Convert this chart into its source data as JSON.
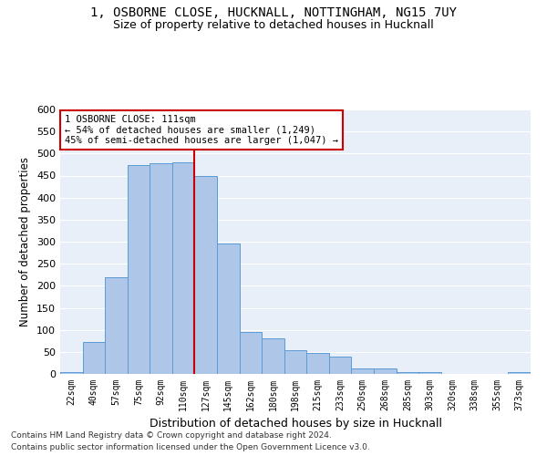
{
  "title_line1": "1, OSBORNE CLOSE, HUCKNALL, NOTTINGHAM, NG15 7UY",
  "title_line2": "Size of property relative to detached houses in Hucknall",
  "xlabel": "Distribution of detached houses by size in Hucknall",
  "ylabel": "Number of detached properties",
  "bar_labels": [
    "22sqm",
    "40sqm",
    "57sqm",
    "75sqm",
    "92sqm",
    "110sqm",
    "127sqm",
    "145sqm",
    "162sqm",
    "180sqm",
    "198sqm",
    "215sqm",
    "233sqm",
    "250sqm",
    "268sqm",
    "285sqm",
    "303sqm",
    "320sqm",
    "338sqm",
    "355sqm",
    "373sqm"
  ],
  "bar_values": [
    5,
    72,
    220,
    473,
    477,
    480,
    450,
    295,
    95,
    80,
    53,
    47,
    40,
    12,
    12,
    5,
    5,
    0,
    0,
    0,
    5
  ],
  "bar_color": "#aec6e8",
  "bar_edgecolor": "#5b9bd5",
  "bar_width": 1.0,
  "vline_x": 5.5,
  "vline_color": "#cc0000",
  "annotation_text": "1 OSBORNE CLOSE: 111sqm\n← 54% of detached houses are smaller (1,249)\n45% of semi-detached houses are larger (1,047) →",
  "annotation_box_color": "#cc0000",
  "ylim": [
    0,
    600
  ],
  "yticks": [
    0,
    50,
    100,
    150,
    200,
    250,
    300,
    350,
    400,
    450,
    500,
    550,
    600
  ],
  "background_color": "#e8eff8",
  "grid_color": "#ffffff",
  "footer_line1": "Contains HM Land Registry data © Crown copyright and database right 2024.",
  "footer_line2": "Contains public sector information licensed under the Open Government Licence v3.0.",
  "fig_width": 6.0,
  "fig_height": 5.0,
  "dpi": 100
}
